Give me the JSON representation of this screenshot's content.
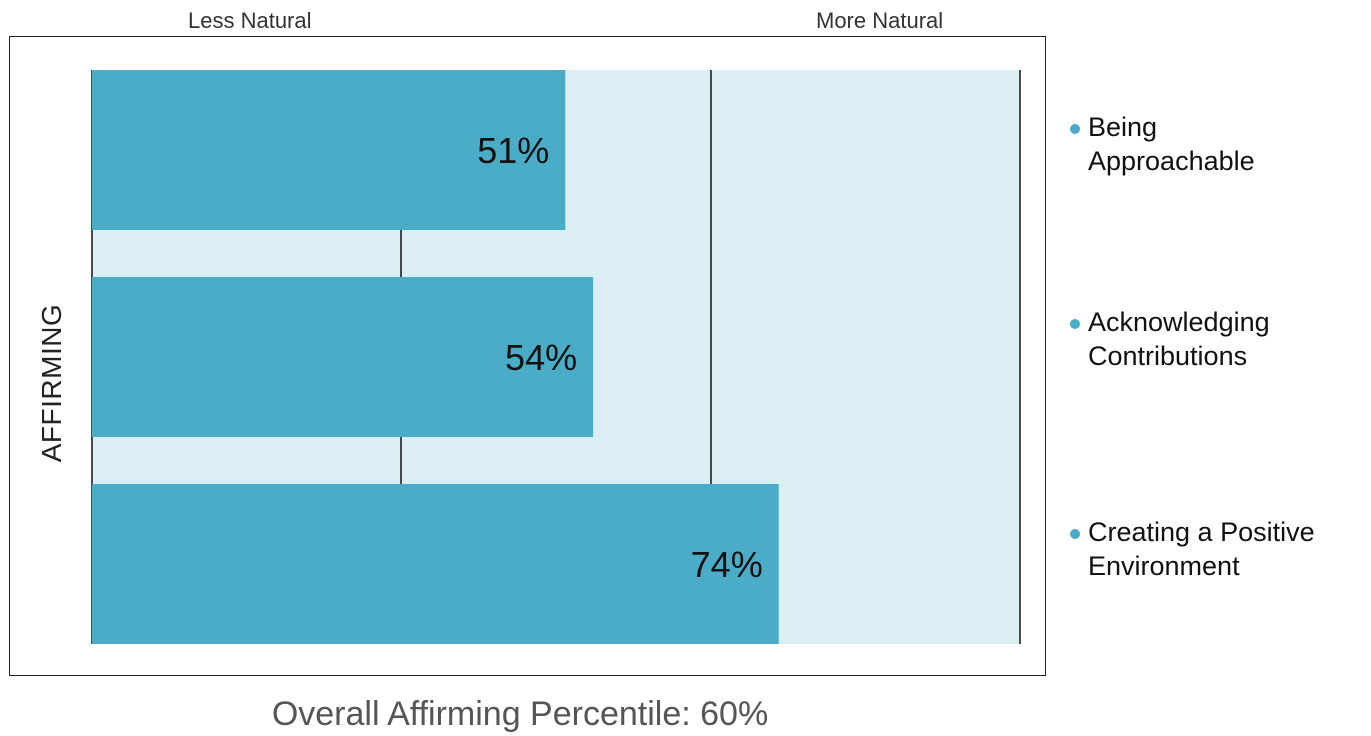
{
  "header": {
    "left_label": "Less Natural",
    "right_label": "More Natural"
  },
  "footer": {
    "summary": "Overall Affirming Percentile: 60%"
  },
  "colors": {
    "bar": "#4aacc6",
    "track": "#dbeef4",
    "gridline": "#111111"
  },
  "chart_data": {
    "type": "bar",
    "orientation": "horizontal",
    "ylabel": "AFFIRMING",
    "xlim": [
      0,
      100
    ],
    "gridlines_at": [
      0,
      33.3,
      66.7,
      100
    ],
    "categories": [
      "Being Approachable",
      "Acknowledging Contributions",
      "Creating a Positive Environment"
    ],
    "values": [
      51,
      54,
      74
    ],
    "value_labels": [
      "51%",
      "54%",
      "74%"
    ],
    "legend_lines": [
      [
        "Being",
        "Approachable"
      ],
      [
        "Acknowledging",
        "Contributions"
      ],
      [
        "Creating a Positive",
        "Environment"
      ]
    ],
    "legend_placement": "right"
  }
}
